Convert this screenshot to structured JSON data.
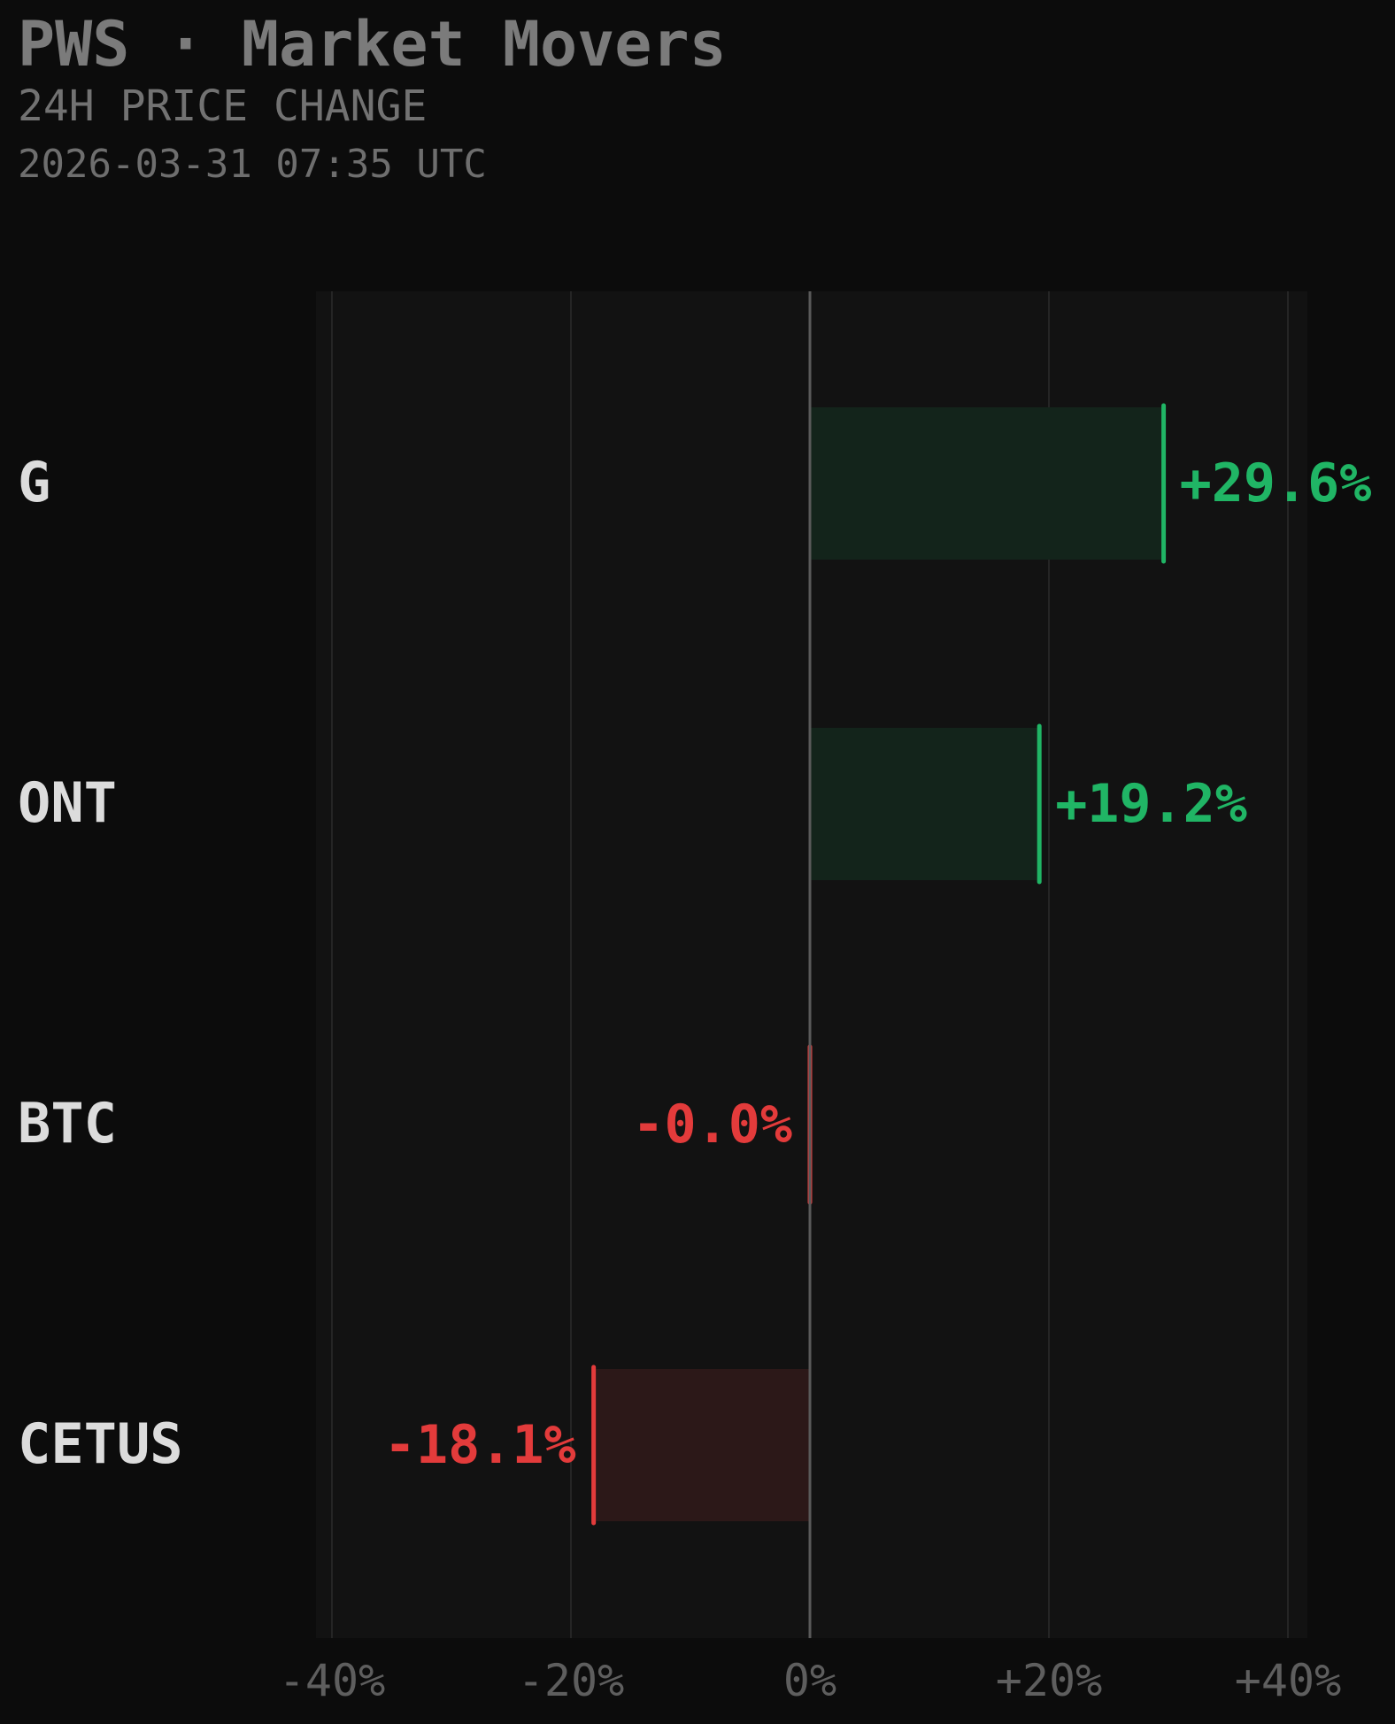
{
  "header": {
    "title": "PWS · Market Movers",
    "subtitle": "24H PRICE CHANGE",
    "timestamp": "2026-03-31 07:35 UTC"
  },
  "colors": {
    "positive": "#20b565",
    "negative": "#e33b3b",
    "positive_fill": "#13241b",
    "negative_fill": "#2c1818",
    "label": "#dcdcdc",
    "tick": "#5e5e5e"
  },
  "chart_data": {
    "type": "bar",
    "orientation": "horizontal",
    "categories": [
      "G",
      "ONT",
      "BTC",
      "CETUS"
    ],
    "values": [
      29.6,
      19.2,
      -0.0,
      -18.1
    ],
    "value_labels": [
      "+29.6%",
      "+19.2%",
      "-0.0%",
      "-18.1%"
    ],
    "xlim": [
      -40,
      40
    ],
    "xticks": [
      -40,
      -20,
      0,
      20,
      40
    ],
    "xtick_labels": [
      "-40%",
      "-20%",
      "0%",
      "+20%",
      "+40%"
    ],
    "grid": true
  }
}
